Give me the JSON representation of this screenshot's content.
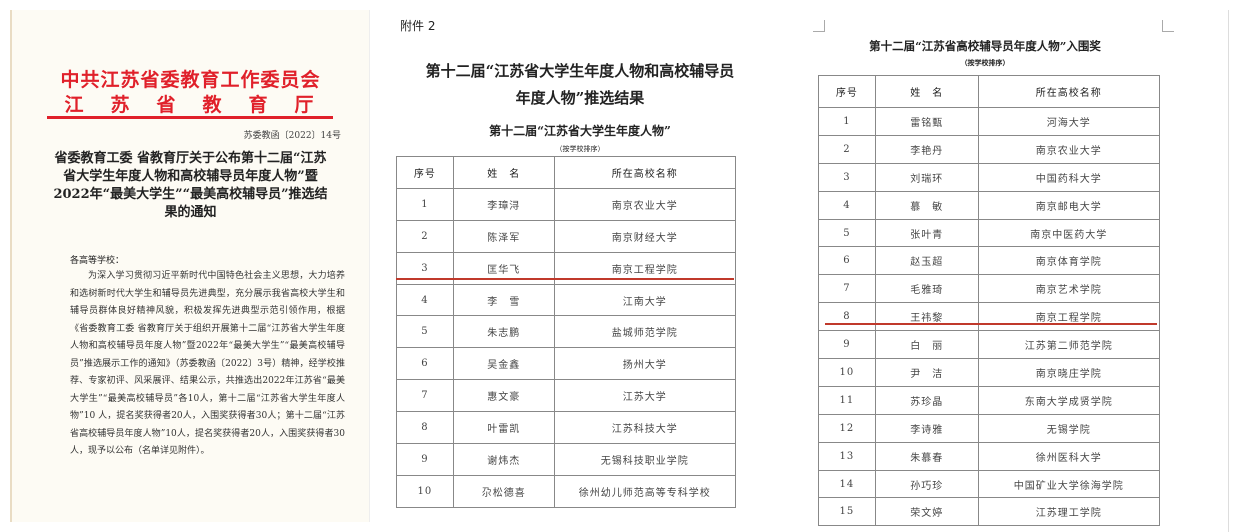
{
  "notice": {
    "header_line1": "中共江苏省委教育工作委员会",
    "header_line2": "江苏省教育厅",
    "doc_number": "苏委教函〔2022〕14号",
    "title": "省委教育工委 省教育厅关于公布第十二届“江苏省大学生年度人物和高校辅导员年度人物”暨2022年“最美大学生”“最美高校辅导员”推选结果的通知",
    "greeting": "各高等学校：",
    "body": "为深入学习贯彻习近平新时代中国特色社会主义思想，大力培养和选树新时代大学生和辅导员先进典型，充分展示我省高校大学生和辅导员群体良好精神风貌，积极发挥先进典型示范引领作用，根据《省委教育工委 省教育厅关于组织开展第十二届“江苏省大学生年度人物和高校辅导员年度人物”暨2022年“最美大学生”“最美高校辅导员”推选展示工作的通知》（苏委教函〔2022〕3号）精神，经学校推荐、专家初评、风采展评、结果公示，共推选出2022年江苏省“最美大学生”“最美高校辅导员”各10人，第十二届“江苏省大学生年度人物”10 人，提名奖获得者20人，入围奖获得者30人；第十二届“江苏省高校辅导员年度人物”10人，提名奖获得者20人，入围奖获得者30人，现予以公布（名单详见附件）。"
  },
  "attachment": {
    "label": "附件 2",
    "title_line1": "第十二届“江苏省大学生年度人物和高校辅导员",
    "title_line2": "年度人物”推选结果",
    "table_title": "第十二届“江苏省大学生年度人物”",
    "table_subtitle": "（按学校排序）",
    "headers": [
      "序号",
      "姓　名",
      "所在高校名称"
    ],
    "rows": [
      [
        "1",
        "李璋浔",
        "南京农业大学"
      ],
      [
        "2",
        "陈泽军",
        "南京财经大学"
      ],
      [
        "3",
        "匡华飞",
        "南京工程学院"
      ],
      [
        "4",
        "李　雪",
        "江南大学"
      ],
      [
        "5",
        "朱志鹏",
        "盐城师范学院"
      ],
      [
        "6",
        "吴金鑫",
        "扬州大学"
      ],
      [
        "7",
        "惠文豪",
        "江苏大学"
      ],
      [
        "8",
        "叶雷凯",
        "江苏科技大学"
      ],
      [
        "9",
        "谢炜杰",
        "无锡科技职业学院"
      ],
      [
        "10",
        "尕松德喜",
        "徐州幼儿师范高等专科学校"
      ]
    ]
  },
  "finalists": {
    "table_title": "第十二届“江苏省高校辅导员年度人物”入围奖",
    "table_subtitle": "（按学校排序）",
    "headers": [
      "序号",
      "姓　名",
      "所在高校名称"
    ],
    "rows": [
      [
        "1",
        "雷铭甄",
        "河海大学"
      ],
      [
        "2",
        "李艳丹",
        "南京农业大学"
      ],
      [
        "3",
        "刘瑞环",
        "中国药科大学"
      ],
      [
        "4",
        "慕　敏",
        "南京邮电大学"
      ],
      [
        "5",
        "张叶青",
        "南京中医药大学"
      ],
      [
        "6",
        "赵玉超",
        "南京体育学院"
      ],
      [
        "7",
        "毛雅琦",
        "南京艺术学院"
      ],
      [
        "8",
        "王祎黎",
        "南京工程学院"
      ],
      [
        "9",
        "白　丽",
        "江苏第二师范学院"
      ],
      [
        "10",
        "尹　洁",
        "南京晓庄学院"
      ],
      [
        "11",
        "苏珍晶",
        "东南大学成贤学院"
      ],
      [
        "12",
        "李诗雅",
        "无锡学院"
      ],
      [
        "13",
        "朱慕春",
        "徐州医科大学"
      ],
      [
        "14",
        "孙巧珍",
        "中国矿业大学徐海学院"
      ],
      [
        "15",
        "荣文婷",
        "江苏理工学院"
      ]
    ]
  },
  "colors": {
    "header_red": "#e0202a",
    "highlight_line": "#c0392b"
  }
}
